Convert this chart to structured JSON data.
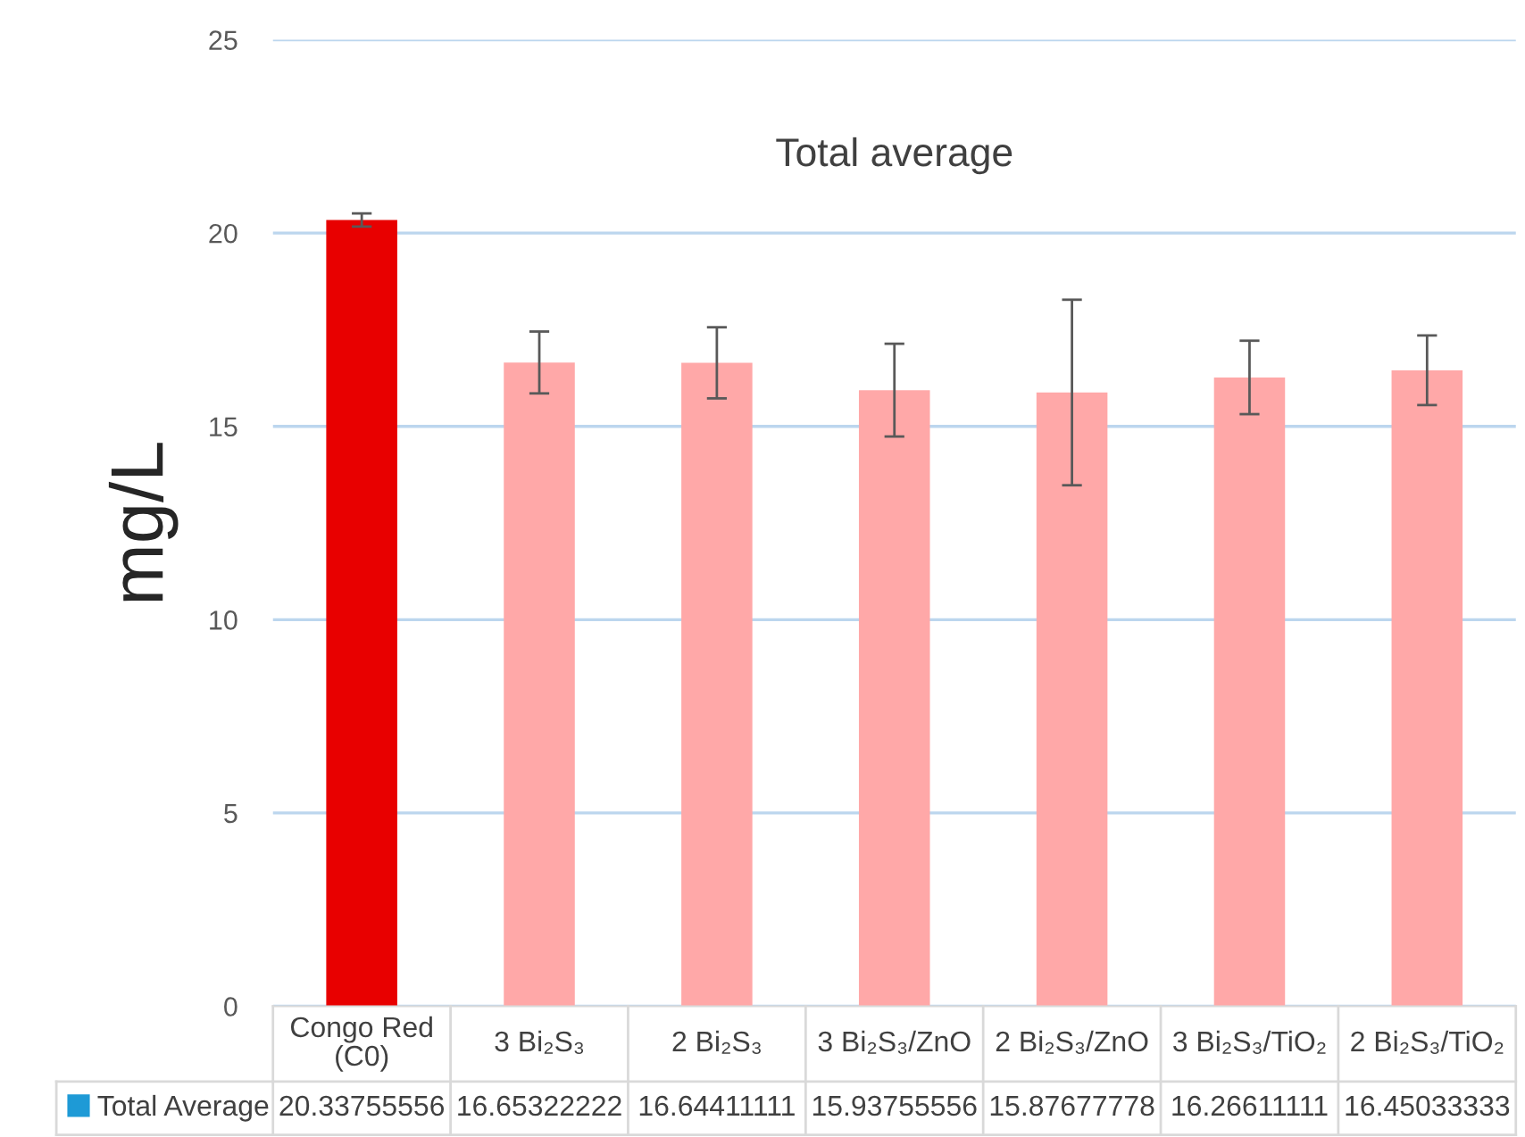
{
  "chart_data": {
    "type": "bar",
    "title": "Total average",
    "ylabel": "mg/L",
    "categories": [
      "Congo Red (C0)",
      "3 Bi₂S₃",
      "2 Bi₂S₃",
      "3 Bi₂S₃/ZnO",
      "2 Bi₂S₃/ZnO",
      "3 Bi₂S₃/TiO₂",
      "2 Bi₂S₃/TiO₂"
    ],
    "series": [
      {
        "name": "Total Average",
        "color": "#1e9ad6",
        "colors": [
          "#e80000",
          "#ffa8a8",
          "#ffa8a8",
          "#ffa8a8",
          "#ffa8a8",
          "#ffa8a8",
          "#ffa8a8"
        ],
        "values": [
          20.33755556,
          16.65322222,
          16.64411111,
          15.93755556,
          15.87677778,
          16.26611111,
          16.45033333
        ],
        "errors": [
          0.17,
          0.8,
          0.92,
          1.2,
          2.4,
          0.95,
          0.9
        ]
      }
    ],
    "ylim": [
      0,
      25
    ],
    "yticks": [
      0,
      5,
      10,
      15,
      20,
      25
    ],
    "grid": "y",
    "data_labels": true,
    "legend": "bottom"
  }
}
